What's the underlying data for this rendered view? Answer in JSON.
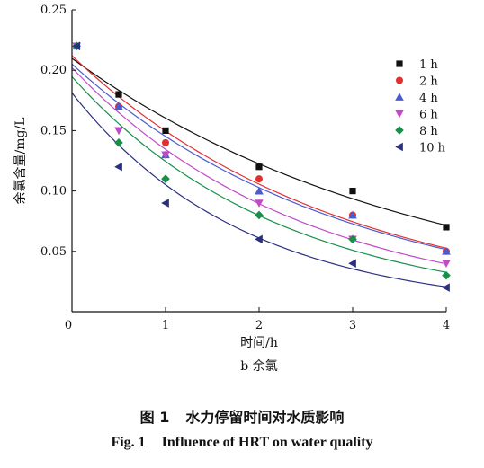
{
  "chart_data": {
    "type": "scatter",
    "panel_label": "b 余氯",
    "xlabel": "时间/h",
    "ylabel": "余氯含量/mg/L",
    "xlim": [
      0,
      4
    ],
    "ylim": [
      0,
      0.25
    ],
    "x_ticks": [
      "0",
      "1",
      "2",
      "3",
      "4"
    ],
    "y_ticks": [
      "0.05",
      "0.10",
      "0.15",
      "0.20",
      "0.25"
    ],
    "legend_position": "top-right",
    "grid": false,
    "fit_curves": true,
    "series": [
      {
        "name": "1 h",
        "color": "#111111",
        "marker": "square",
        "x": [
          0.05,
          0.5,
          1,
          2,
          3,
          4
        ],
        "y": [
          0.22,
          0.18,
          0.15,
          0.12,
          0.1,
          0.07
        ]
      },
      {
        "name": "2 h",
        "color": "#e03030",
        "marker": "circle",
        "x": [
          0.05,
          0.5,
          1,
          2,
          3,
          4
        ],
        "y": [
          0.22,
          0.17,
          0.14,
          0.11,
          0.08,
          0.05
        ]
      },
      {
        "name": "4 h",
        "color": "#4a5bd0",
        "marker": "triangle-up",
        "x": [
          0.05,
          0.5,
          1,
          2,
          3,
          4
        ],
        "y": [
          0.22,
          0.17,
          0.13,
          0.1,
          0.08,
          0.05
        ]
      },
      {
        "name": "6 h",
        "color": "#c04bc8",
        "marker": "triangle-down",
        "x": [
          0.05,
          0.5,
          1,
          2,
          3,
          4
        ],
        "y": [
          0.22,
          0.15,
          0.13,
          0.09,
          0.06,
          0.04
        ]
      },
      {
        "name": "8 h",
        "color": "#16904a",
        "marker": "diamond",
        "x": [
          0.05,
          0.5,
          1,
          2,
          3,
          4
        ],
        "y": [
          0.22,
          0.14,
          0.11,
          0.08,
          0.06,
          0.03
        ]
      },
      {
        "name": "10 h",
        "color": "#2a2f80",
        "marker": "triangle-left",
        "x": [
          0.05,
          0.5,
          1,
          2,
          3,
          4
        ],
        "y": [
          0.22,
          0.12,
          0.09,
          0.06,
          0.04,
          0.02
        ]
      }
    ]
  },
  "caption": {
    "cn_label": "图 1",
    "cn_text": "水力停留时间对水质影响",
    "en_label": "Fig. 1",
    "en_text": "Influence of HRT on water quality"
  }
}
